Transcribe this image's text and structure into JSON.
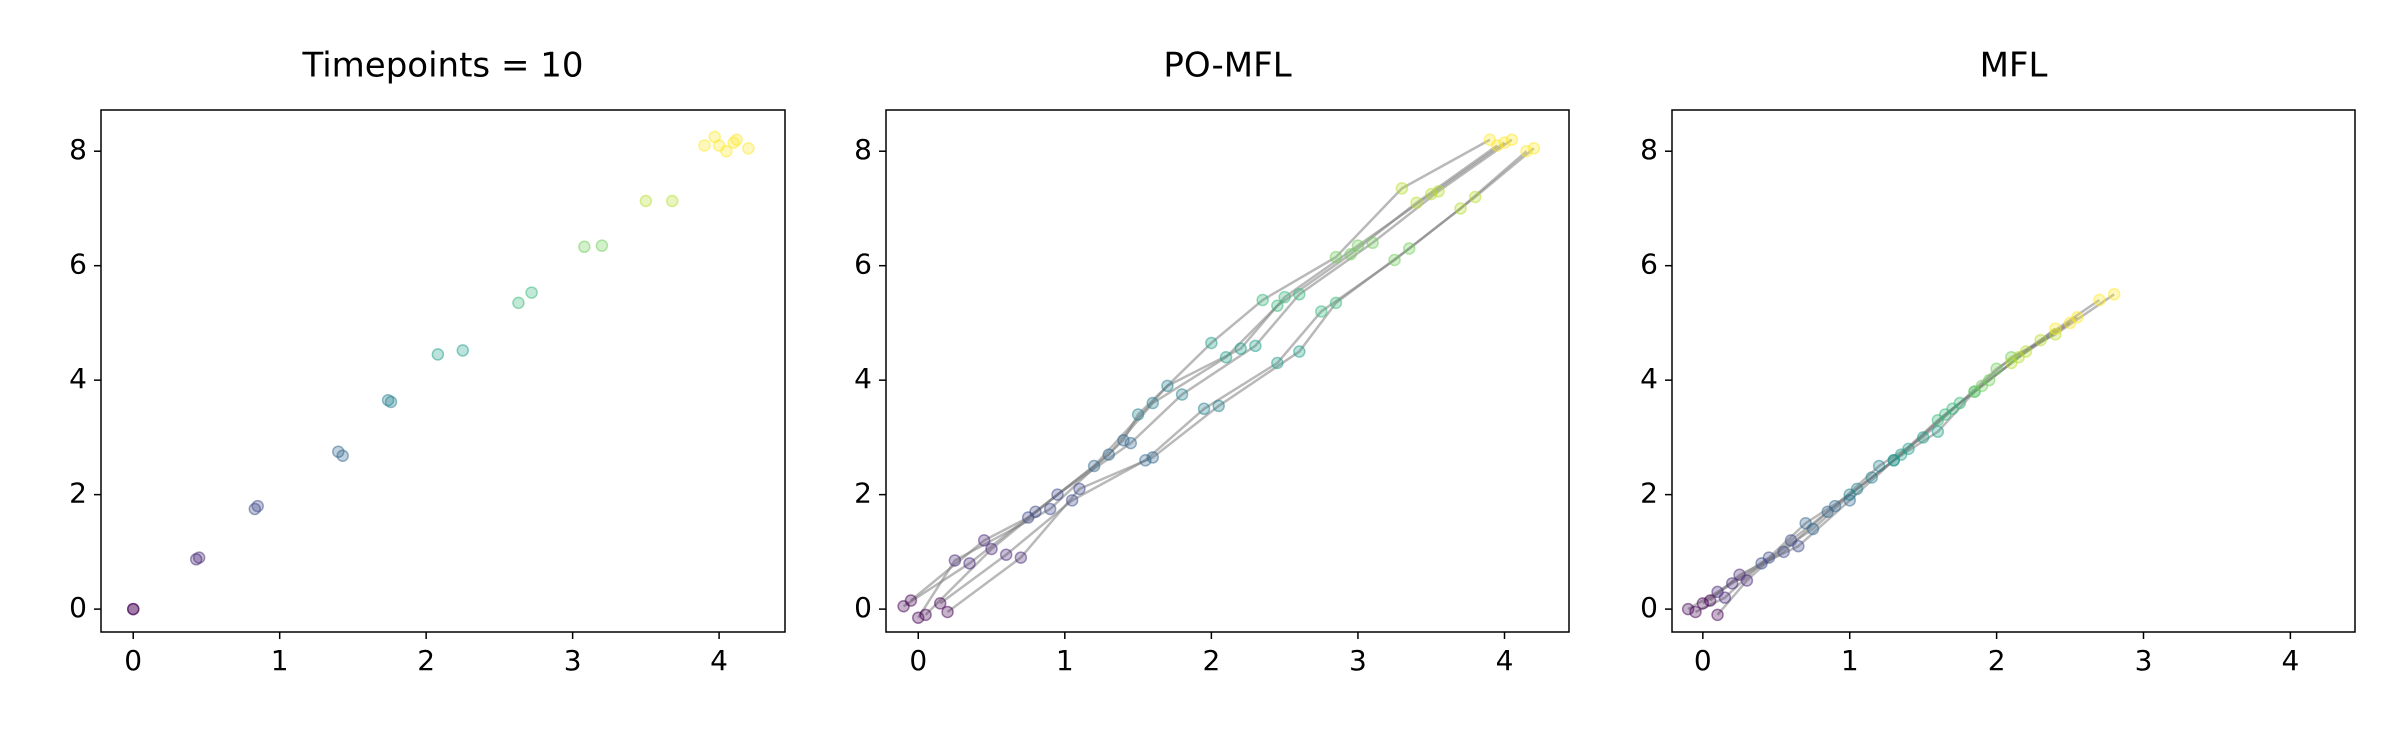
{
  "chart_data": [
    {
      "type": "scatter",
      "title": "Timepoints = 10",
      "xlim": [
        -0.22,
        4.45
      ],
      "ylim": [
        -0.4,
        8.72
      ],
      "xticks": [
        0,
        1,
        2,
        3,
        4
      ],
      "yticks": [
        0,
        2,
        4,
        6,
        8
      ],
      "alpha": 0.3,
      "trajectories": false,
      "series": [
        {
          "color": "#440154",
          "x": [
            0,
            0
          ],
          "y": [
            0,
            0
          ]
        },
        {
          "color": "#482878",
          "x": [
            0.43,
            0.45
          ],
          "y": [
            0.87,
            0.9
          ]
        },
        {
          "color": "#3e4989",
          "x": [
            0.83,
            0.85
          ],
          "y": [
            1.75,
            1.8
          ]
        },
        {
          "color": "#31688e",
          "x": [
            1.4,
            1.43
          ],
          "y": [
            2.75,
            2.68
          ]
        },
        {
          "color": "#26828e",
          "x": [
            1.74,
            1.76
          ],
          "y": [
            3.65,
            3.62
          ]
        },
        {
          "color": "#1f9e89",
          "x": [
            2.08,
            2.25
          ],
          "y": [
            4.45,
            4.52
          ]
        },
        {
          "color": "#35b779",
          "x": [
            2.63,
            2.72
          ],
          "y": [
            5.35,
            5.53
          ]
        },
        {
          "color": "#6ece58",
          "x": [
            3.08,
            3.2
          ],
          "y": [
            6.33,
            6.35
          ]
        },
        {
          "color": "#b5de2b",
          "x": [
            3.5,
            3.68
          ],
          "y": [
            7.13,
            7.13
          ]
        },
        {
          "color": "#fde725",
          "x": [
            3.9,
            3.97,
            4.05,
            4.1,
            4.0,
            4.2,
            4.12
          ],
          "y": [
            8.1,
            8.25,
            8.0,
            8.15,
            8.1,
            8.05,
            8.2
          ]
        }
      ]
    },
    {
      "type": "scatter",
      "title": "PO-MFL",
      "xlim": [
        -0.22,
        4.44
      ],
      "ylim": [
        -0.4,
        8.72
      ],
      "xticks": [
        0,
        1,
        2,
        3,
        4
      ],
      "yticks": [
        0,
        2,
        4,
        6,
        8
      ],
      "alpha": 0.3,
      "trajectories": true,
      "trajectory_color": "#808080",
      "series": [
        {
          "color": "#440154",
          "x": [
            -0.1,
            0.05,
            0.15,
            -0.05,
            0.2,
            0.0
          ],
          "y": [
            0.05,
            -0.1,
            0.1,
            0.15,
            -0.05,
            -0.15
          ]
        },
        {
          "color": "#482878",
          "x": [
            0.35,
            0.5,
            0.6,
            0.45,
            0.7,
            0.25
          ],
          "y": [
            0.8,
            1.05,
            0.95,
            1.2,
            0.9,
            0.85
          ]
        },
        {
          "color": "#3e4989",
          "x": [
            0.8,
            0.95,
            1.05,
            0.75,
            1.1,
            0.9
          ],
          "y": [
            1.7,
            2.0,
            1.9,
            1.6,
            2.1,
            1.75
          ]
        },
        {
          "color": "#31688e",
          "x": [
            1.3,
            1.45,
            1.55,
            1.2,
            1.6,
            1.4
          ],
          "y": [
            2.7,
            2.9,
            2.6,
            2.5,
            2.65,
            2.95
          ]
        },
        {
          "color": "#26828e",
          "x": [
            1.6,
            1.8,
            1.95,
            1.7,
            2.05,
            1.5
          ],
          "y": [
            3.6,
            3.75,
            3.5,
            3.9,
            3.55,
            3.4
          ]
        },
        {
          "color": "#1f9e89",
          "x": [
            2.1,
            2.3,
            2.45,
            2.2,
            2.6,
            2.0
          ],
          "y": [
            4.4,
            4.6,
            4.3,
            4.55,
            4.5,
            4.65
          ]
        },
        {
          "color": "#35b779",
          "x": [
            2.45,
            2.6,
            2.75,
            2.5,
            2.85,
            2.35
          ],
          "y": [
            5.3,
            5.5,
            5.2,
            5.45,
            5.35,
            5.4
          ]
        },
        {
          "color": "#6ece58",
          "x": [
            2.95,
            3.1,
            3.25,
            3.0,
            3.35,
            2.85
          ],
          "y": [
            6.2,
            6.4,
            6.1,
            6.35,
            6.3,
            6.15
          ]
        },
        {
          "color": "#b5de2b",
          "x": [
            3.4,
            3.55,
            3.7,
            3.5,
            3.8,
            3.3
          ],
          "y": [
            7.1,
            7.3,
            7.0,
            7.25,
            7.2,
            7.35
          ]
        },
        {
          "color": "#fde725",
          "x": [
            3.95,
            4.05,
            4.15,
            4.0,
            4.2,
            3.9
          ],
          "y": [
            8.1,
            8.2,
            8.0,
            8.15,
            8.05,
            8.2
          ]
        }
      ]
    },
    {
      "type": "scatter",
      "title": "MFL",
      "xlim": [
        -0.21,
        4.44
      ],
      "ylim": [
        -0.4,
        8.72
      ],
      "xticks": [
        0,
        1,
        2,
        3,
        4
      ],
      "yticks": [
        0,
        2,
        4,
        6,
        8
      ],
      "alpha": 0.3,
      "trajectories": true,
      "trajectory_color": "#808080",
      "series": [
        {
          "color": "#440154",
          "x": [
            -0.1,
            0.0,
            0.1,
            -0.05,
            0.05
          ],
          "y": [
            0.0,
            0.1,
            -0.1,
            -0.05,
            0.15
          ]
        },
        {
          "color": "#482878",
          "x": [
            0.1,
            0.2,
            0.3,
            0.15,
            0.25
          ],
          "y": [
            0.3,
            0.45,
            0.5,
            0.2,
            0.6
          ]
        },
        {
          "color": "#3e4989",
          "x": [
            0.45,
            0.55,
            0.6,
            0.4,
            0.65
          ],
          "y": [
            0.9,
            1.0,
            1.2,
            0.8,
            1.1
          ]
        },
        {
          "color": "#31688e",
          "x": [
            0.7,
            0.85,
            0.9,
            0.75,
            1.0
          ],
          "y": [
            1.5,
            1.7,
            1.8,
            1.4,
            1.9
          ]
        },
        {
          "color": "#26828e",
          "x": [
            1.0,
            1.15,
            1.2,
            1.05,
            1.3
          ],
          "y": [
            2.0,
            2.3,
            2.5,
            2.1,
            2.6
          ]
        },
        {
          "color": "#1f9e89",
          "x": [
            1.3,
            1.4,
            1.5,
            1.35,
            1.6
          ],
          "y": [
            2.6,
            2.8,
            3.0,
            2.7,
            3.1
          ]
        },
        {
          "color": "#35b779",
          "x": [
            1.6,
            1.7,
            1.75,
            1.65,
            1.85
          ],
          "y": [
            3.3,
            3.5,
            3.6,
            3.4,
            3.8
          ]
        },
        {
          "color": "#6ece58",
          "x": [
            1.85,
            1.95,
            2.0,
            1.9,
            2.1
          ],
          "y": [
            3.8,
            4.0,
            4.2,
            3.9,
            4.4
          ]
        },
        {
          "color": "#b5de2b",
          "x": [
            2.1,
            2.2,
            2.3,
            2.15,
            2.4
          ],
          "y": [
            4.3,
            4.5,
            4.7,
            4.4,
            4.8
          ]
        },
        {
          "color": "#fde725",
          "x": [
            2.4,
            2.55,
            2.7,
            2.5,
            2.8
          ],
          "y": [
            4.9,
            5.1,
            5.4,
            5.0,
            5.5
          ]
        }
      ]
    }
  ]
}
